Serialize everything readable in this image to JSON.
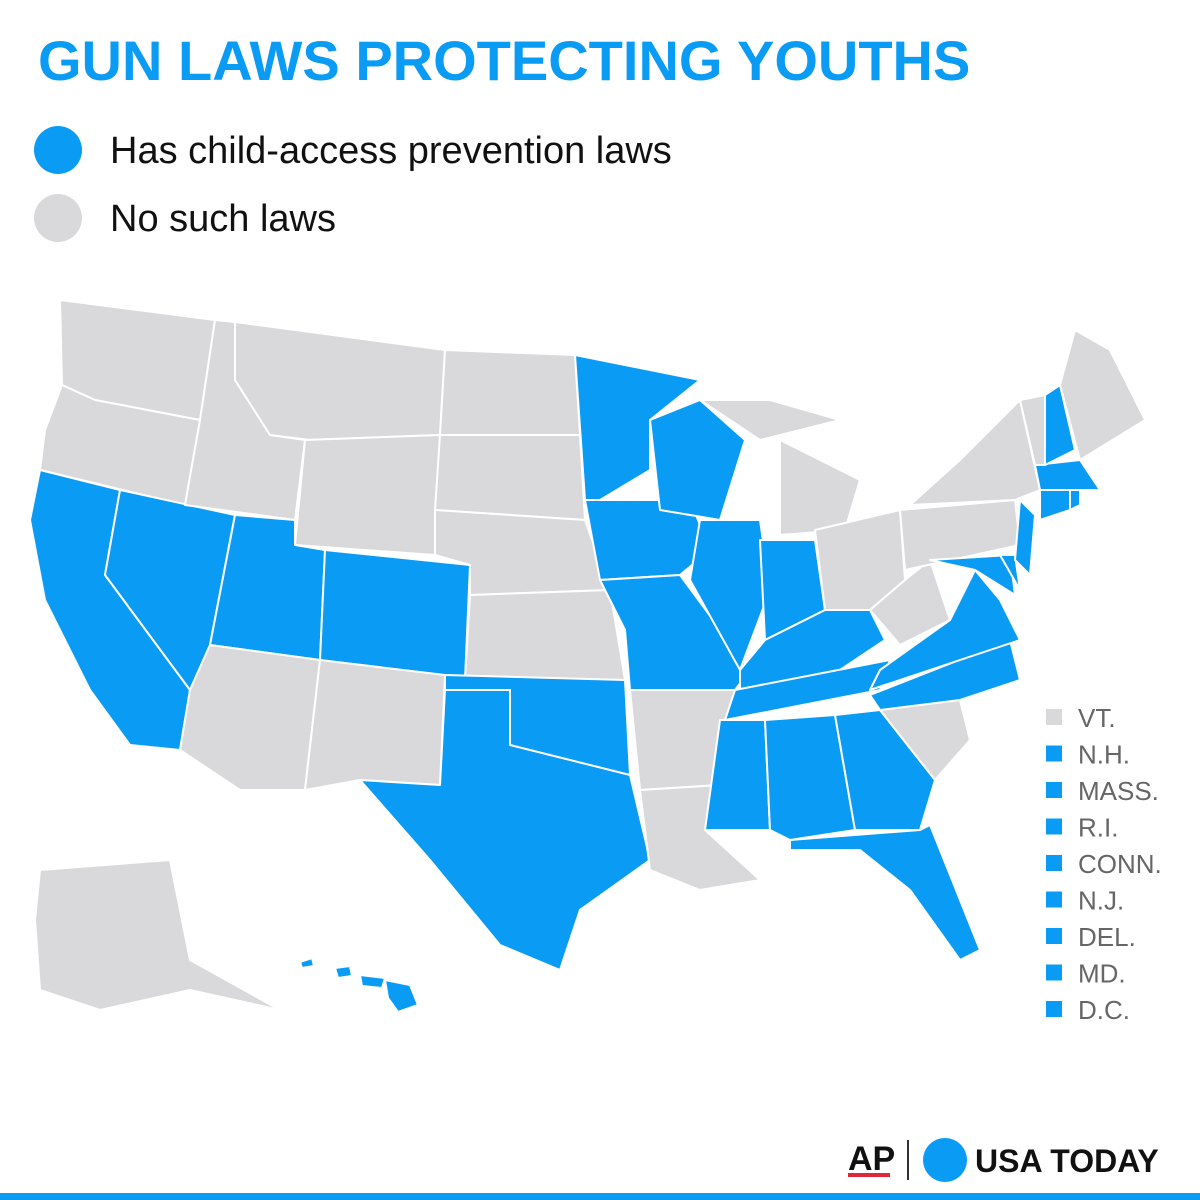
{
  "title": "GUN LAWS PROTECTING YOUTHS",
  "legend": [
    {
      "label": "Has child-access prevention laws",
      "color": "#0a9cf5"
    },
    {
      "label": "No such laws",
      "color": "#d9d9db"
    }
  ],
  "small_states": [
    {
      "label": "VT.",
      "legend": 1
    },
    {
      "label": "N.H.",
      "legend": 0
    },
    {
      "label": "MASS.",
      "legend": 0
    },
    {
      "label": "R.I.",
      "legend": 0
    },
    {
      "label": "CONN.",
      "legend": 0
    },
    {
      "label": "N.J.",
      "legend": 0
    },
    {
      "label": "DEL.",
      "legend": 0
    },
    {
      "label": "MD.",
      "legend": 0
    },
    {
      "label": "D.C.",
      "legend": 0
    }
  ],
  "credits": {
    "left": "AP",
    "right": "USA TODAY"
  }
}
